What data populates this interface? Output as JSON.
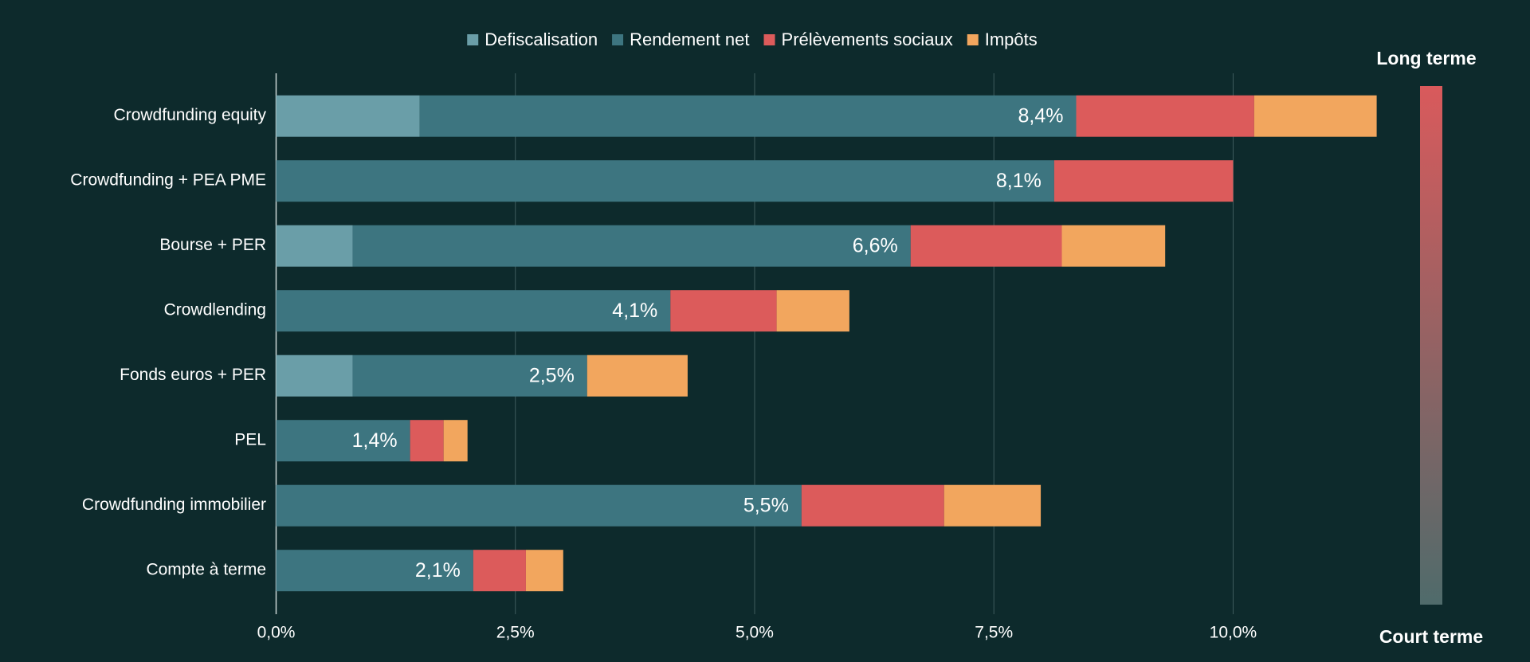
{
  "chart_data": {
    "type": "stacked-barh",
    "categories": [
      "Crowdfunding equity",
      "Crowdfunding + PEA PME",
      "Bourse + PER",
      "Crowdlending",
      "Fonds euros + PER",
      "PEL",
      "Crowdfunding immobilier",
      "Compte à terme"
    ],
    "series": [
      {
        "name": "Defiscalisation",
        "color": "#6a9ea8",
        "values": [
          1.5,
          null,
          0.8,
          null,
          0.8,
          null,
          null,
          null
        ]
      },
      {
        "name": "Rendement net",
        "color": "#3d7580",
        "values": [
          6.86,
          8.13,
          5.83,
          4.12,
          2.45,
          1.4,
          5.49,
          2.06
        ]
      },
      {
        "name": "Prélèvements sociaux",
        "color": "#dc5b5b",
        "values": [
          1.86,
          1.87,
          1.58,
          1.11,
          null,
          0.35,
          1.49,
          0.55
        ]
      },
      {
        "name": "Impôts",
        "color": "#f2a65e",
        "values": [
          1.28,
          null,
          1.08,
          0.76,
          1.05,
          0.25,
          1.01,
          0.39
        ]
      }
    ],
    "net_return_labels": [
      "8,4%",
      "8,1%",
      "6,6%",
      "4,1%",
      "2,5%",
      "1,4%",
      "5,5%",
      "2,1%"
    ],
    "xlim": [
      0,
      11.5
    ],
    "xticks": [
      {
        "value": 0,
        "label": "0,0%"
      },
      {
        "value": 2.5,
        "label": "2,5%"
      },
      {
        "value": 5,
        "label": "5,0%"
      },
      {
        "value": 7.5,
        "label": "7,5%"
      },
      {
        "value": 10,
        "label": "10,0%"
      }
    ],
    "grid": true,
    "horizon_scale": {
      "top": "Long terme",
      "bottom": "Court terme"
    }
  }
}
